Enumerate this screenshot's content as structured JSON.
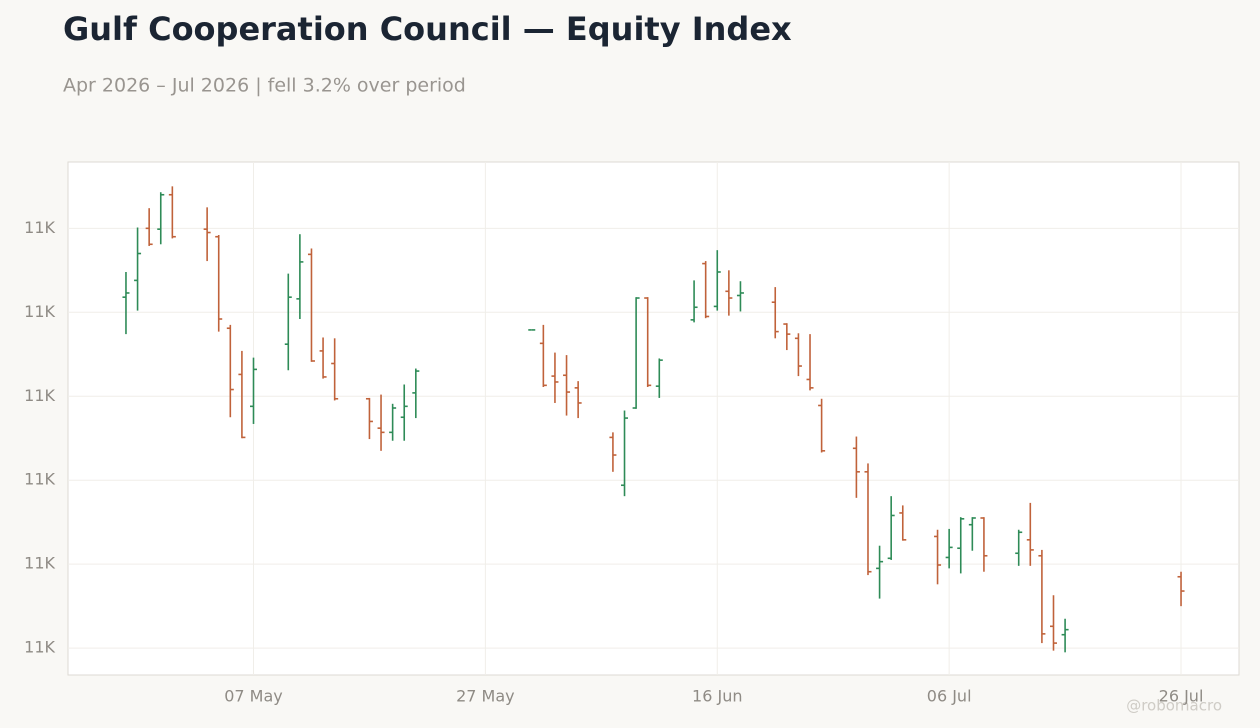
{
  "chart_data": {
    "type": "ohlc",
    "title": "Gulf Cooperation Council — Equity Index",
    "subtitle": "Apr 2026 – Jul 2026 | fell 3.2% over period",
    "watermark": "@robomacro",
    "x": [
      "26 Apr",
      "27 Apr",
      "28 Apr",
      "29 Apr",
      "30 Apr",
      "03 May",
      "04 May",
      "05 May",
      "06 May",
      "07 May",
      "10 May",
      "11 May",
      "12 May",
      "13 May",
      "14 May",
      "17 May",
      "18 May",
      "19 May",
      "20 May",
      "21 May",
      "31 May",
      "01 Jun",
      "02 Jun",
      "03 Jun",
      "04 Jun",
      "07 Jun",
      "08 Jun",
      "09 Jun",
      "10 Jun",
      "11 Jun",
      "14 Jun",
      "15 Jun",
      "16 Jun",
      "17 Jun",
      "18 Jun",
      "21 Jun",
      "22 Jun",
      "23 Jun",
      "24 Jun",
      "25 Jun",
      "28 Jun",
      "29 Jun",
      "30 Jun",
      "01 Jul",
      "02 Jul",
      "05 Jul",
      "06 Jul",
      "07 Jul",
      "08 Jul",
      "09 Jul",
      "12 Jul",
      "13 Jul",
      "14 Jul",
      "15 Jul",
      "16 Jul",
      "26 Jul"
    ],
    "open": [
      11418,
      11438,
      11500,
      11499,
      11540,
      11499,
      11490,
      11381,
      11326,
      11288,
      11362,
      11416,
      11469,
      11354,
      11339,
      11297,
      11262,
      11257,
      11275,
      11304,
      11379,
      11363,
      11324,
      11325,
      11310,
      11251,
      11194,
      11286,
      11417,
      11312,
      11391,
      11458,
      11407,
      11425,
      11420,
      11412,
      11386,
      11369,
      11320,
      11289,
      11238,
      11210,
      11095,
      11107,
      11161,
      11133,
      11108,
      11119,
      11147,
      11155,
      11113,
      11129,
      11110,
      11026,
      11016,
      11085
    ],
    "high": [
      11448,
      11501,
      11524,
      11543,
      11550,
      11525,
      11492,
      11385,
      11354,
      11346,
      11446,
      11493,
      11476,
      11370,
      11369,
      11298,
      11302,
      11291,
      11314,
      11333,
      11379,
      11385,
      11352,
      11349,
      11318,
      11257,
      11283,
      11418,
      11418,
      11345,
      11438,
      11461,
      11474,
      11450,
      11437,
      11430,
      11387,
      11375,
      11374,
      11297,
      11252,
      11220,
      11122,
      11181,
      11170,
      11141,
      11142,
      11156,
      11156,
      11156,
      11141,
      11173,
      11117,
      11063,
      11035,
      11091
    ],
    "low": [
      11374,
      11402,
      11479,
      11481,
      11488,
      11461,
      11377,
      11275,
      11250,
      11267,
      11331,
      11392,
      11341,
      11321,
      11295,
      11249,
      11235,
      11247,
      11247,
      11274,
      11379,
      11311,
      11292,
      11277,
      11274,
      11210,
      11181,
      11285,
      11311,
      11298,
      11388,
      11393,
      11402,
      11396,
      11401,
      11369,
      11355,
      11324,
      11307,
      11233,
      11179,
      11087,
      11059,
      11105,
      11128,
      11076,
      11095,
      11089,
      11116,
      11091,
      11098,
      11098,
      11006,
      10997,
      10995,
      11050
    ],
    "close": [
      11423,
      11470,
      11481,
      11540,
      11490,
      11495,
      11392,
      11308,
      11251,
      11332,
      11418,
      11460,
      11342,
      11323,
      11297,
      11270,
      11257,
      11286,
      11288,
      11330,
      11379,
      11313,
      11317,
      11305,
      11292,
      11230,
      11274,
      11417,
      11313,
      11343,
      11406,
      11395,
      11448,
      11417,
      11423,
      11377,
      11374,
      11336,
      11310,
      11235,
      11210,
      11091,
      11103,
      11158,
      11129,
      11099,
      11120,
      11154,
      11155,
      11110,
      11138,
      11117,
      11017,
      11006,
      11022,
      11068
    ],
    "up_color": "#2e8b57",
    "down_color": "#c0623a",
    "xlim": [
      "21 Apr",
      "31 Jul"
    ],
    "xticks": [
      "07 May",
      "27 May",
      "16 Jun",
      "06 Jul",
      "26 Jul"
    ],
    "ylim": [
      10968,
      11579
    ],
    "yticks": [
      {
        "value": 11000,
        "label": "11K"
      },
      {
        "value": 11100,
        "label": "11K"
      },
      {
        "value": 11200,
        "label": "11K"
      },
      {
        "value": 11300,
        "label": "11K"
      },
      {
        "value": 11400,
        "label": "11K"
      },
      {
        "value": 11500,
        "label": "11K"
      }
    ],
    "grid": true
  }
}
